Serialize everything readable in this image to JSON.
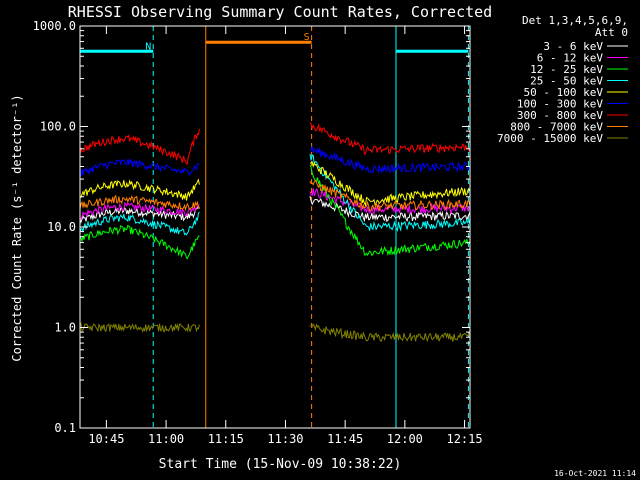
{
  "chart_data": {
    "type": "line",
    "title": "RHESSI Observing Summary Count Rates, Corrected",
    "xlabel": "Start Time (15-Nov-09 10:38:22)",
    "ylabel": "Corrected Count Rate (s⁻¹ detector⁻¹)",
    "y_scale": "log",
    "ylim": [
      0.1,
      1000
    ],
    "xlim_minutes": [
      0,
      98
    ],
    "grid": false,
    "legend_position": "top-right",
    "legend_header": [
      "Det 1,3,4,5,6,9,",
      "Att 0"
    ],
    "footer_date": "16-Oct-2021 11:14",
    "y_ticks": [
      {
        "value": 1000,
        "label": "1000.0"
      },
      {
        "value": 100,
        "label": "100.0"
      },
      {
        "value": 10,
        "label": "10.0"
      },
      {
        "value": 1,
        "label": "1.0"
      },
      {
        "value": 0.1,
        "label": "0.1"
      }
    ],
    "x_ticks": [
      {
        "t": 6.63,
        "label": "10:45"
      },
      {
        "t": 21.63,
        "label": "11:00"
      },
      {
        "t": 36.63,
        "label": "11:15"
      },
      {
        "t": 51.63,
        "label": "11:30"
      },
      {
        "t": 66.63,
        "label": "11:45"
      },
      {
        "t": 81.63,
        "label": "12:00"
      },
      {
        "t": 96.63,
        "label": "12:15"
      }
    ],
    "segments": [
      {
        "start": 0,
        "end": 30.0
      },
      {
        "start": 57.8,
        "end": 98
      }
    ],
    "events": [
      {
        "type": "solid",
        "t": 0.0,
        "color": "#00ffff"
      },
      {
        "type": "dashed",
        "t": 18.4,
        "color": "#00ffff"
      },
      {
        "type": "solid",
        "t": 31.6,
        "color": "#ff8000"
      },
      {
        "type": "dashed",
        "t": 58.2,
        "color": "#ff8000"
      },
      {
        "type": "solid",
        "t": 79.4,
        "color": "#00ffff"
      },
      {
        "type": "dashed",
        "t": 97.6,
        "color": "#00ffff"
      }
    ],
    "bars": [
      {
        "label": "N",
        "t0": 0.0,
        "t1": 18.4,
        "color": "#00ffff",
        "level": 560
      },
      {
        "label": "S",
        "t0": 31.6,
        "t1": 58.2,
        "color": "#ff8000",
        "level": 690
      },
      {
        "label": "",
        "t0": 79.4,
        "t1": 97.6,
        "color": "#00ffff",
        "level": 560
      }
    ],
    "series": [
      {
        "name": "3 - 6 keV",
        "color": "#ffffff",
        "seg1": [
          11.5,
          14.5,
          12.5,
          15
        ],
        "seg2": [
          19,
          12.5,
          13
        ]
      },
      {
        "name": "6 - 12 keV",
        "color": "#ff00ff",
        "seg1": [
          13,
          16,
          14,
          17
        ],
        "seg2": [
          23,
          15,
          15.5
        ]
      },
      {
        "name": "12 - 25 keV",
        "color": "#00ff00",
        "seg1": [
          7.5,
          9.5,
          5,
          8
        ],
        "seg2": [
          38,
          5.5,
          7
        ]
      },
      {
        "name": "25 - 50 keV",
        "color": "#00ffff",
        "seg1": [
          9.5,
          12.5,
          8.5,
          13
        ],
        "seg2": [
          52,
          10,
          11
        ]
      },
      {
        "name": "50 - 100 keV",
        "color": "#ffff00",
        "seg1": [
          21,
          27,
          20,
          28
        ],
        "seg2": [
          44,
          18,
          23
        ]
      },
      {
        "name": "100 - 300 keV",
        "color": "#0000ff",
        "seg1": [
          34,
          44,
          35,
          42
        ],
        "seg2": [
          60,
          38,
          40
        ]
      },
      {
        "name": "300 - 800 keV",
        "color": "#ff0000",
        "seg1": [
          58,
          76,
          45,
          95
        ],
        "seg2": [
          105,
          58,
          63
        ]
      },
      {
        "name": "800 - 7000 keV",
        "color": "#ff8000",
        "seg1": [
          16,
          19,
          16,
          17
        ],
        "seg2": [
          28,
          16,
          17
        ]
      },
      {
        "name": "7000 - 15000 keV",
        "color": "#808000",
        "seg1": [
          1.0,
          1.0,
          1.0,
          1.0
        ],
        "seg2": [
          1.0,
          0.8,
          0.8
        ]
      }
    ]
  }
}
